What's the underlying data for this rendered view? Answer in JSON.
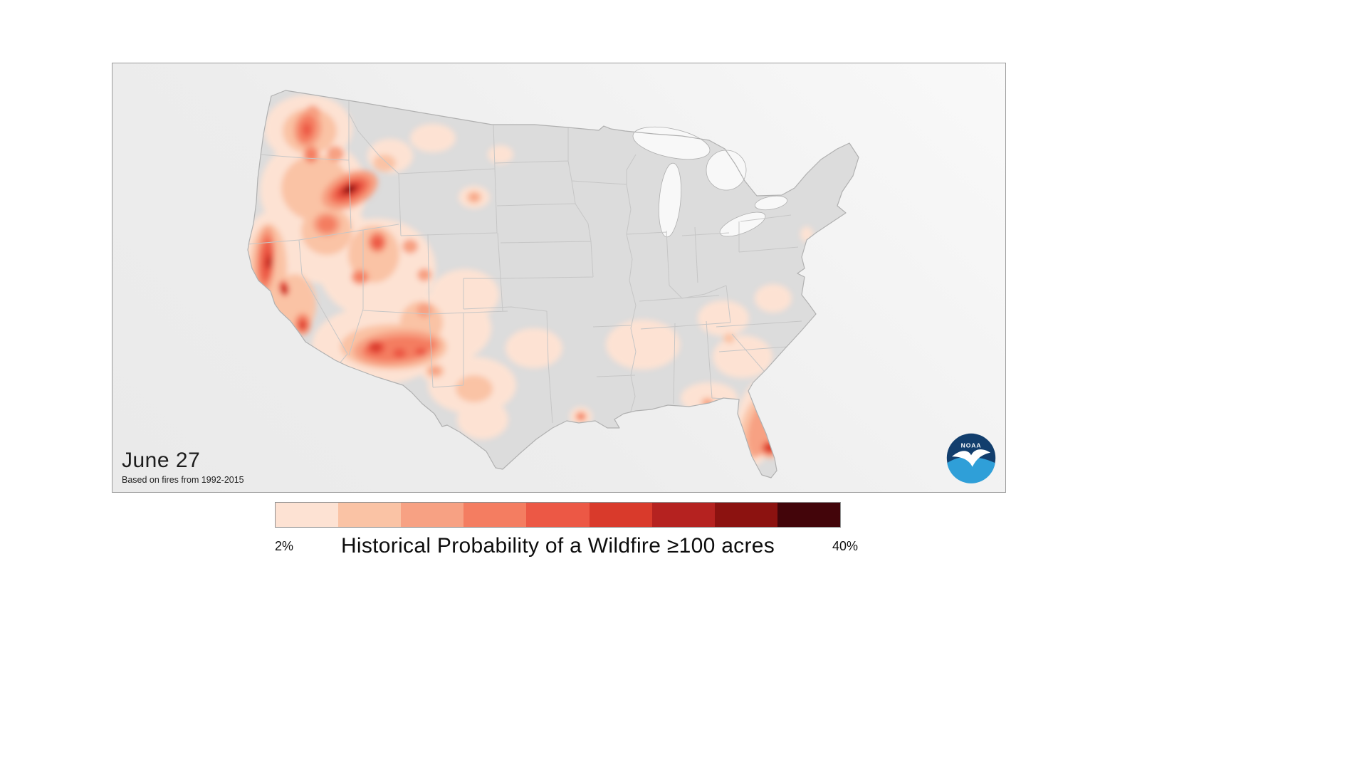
{
  "map": {
    "date_label": "June 27",
    "source_note": "Based on fires from 1992-2015",
    "logo_text": "NOAA"
  },
  "legend": {
    "min_label": "2%",
    "max_label": "40%",
    "title": "Historical Probability of a Wildfire ≥100 acres",
    "colors": [
      "#fde2d3",
      "#fac3a5",
      "#f7a183",
      "#f47d61",
      "#ec5845",
      "#d93a2b",
      "#b52220",
      "#8c1210",
      "#43050a"
    ]
  },
  "map_colors": {
    "background": "#ededed",
    "land": "#dcdcdc",
    "state_border": "#c6c6c6",
    "outline": "#b0b0b0",
    "lake": "#f8f8f8"
  }
}
